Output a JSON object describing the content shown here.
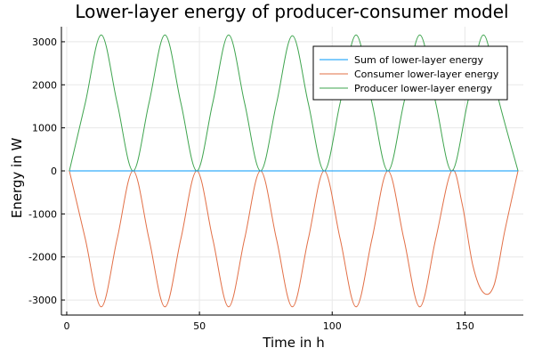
{
  "chart_data": {
    "type": "line",
    "title": "Lower-layer energy of producer-consumer model",
    "xlabel": "Time in h",
    "ylabel": "Energy in W",
    "xlim": [
      -2,
      172
    ],
    "ylim": [
      -3350,
      3350
    ],
    "xticks": [
      0,
      50,
      100,
      150
    ],
    "yticks": [
      -3000,
      -2000,
      -1000,
      0,
      1000,
      2000,
      3000
    ],
    "grid": true,
    "legend": "top-right",
    "series": [
      {
        "name": "Sum of lower-layer energy",
        "color": "#009AFA",
        "x": [
          1,
          170
        ],
        "y": [
          0,
          0
        ]
      },
      {
        "name": "Consumer lower-layer energy",
        "color": "#E26F46",
        "x": [
          1,
          7,
          13,
          19,
          25,
          31,
          37,
          43,
          49,
          55,
          61,
          67,
          73,
          79,
          85,
          91,
          97,
          103,
          109,
          115,
          121,
          127,
          133,
          139,
          145,
          149,
          153,
          157,
          161,
          165,
          170
        ],
        "y": [
          0,
          -1580,
          -3160,
          -1580,
          0,
          -1580,
          -3160,
          -1580,
          0,
          -1580,
          -3160,
          -1580,
          0,
          -1580,
          -3160,
          -1580,
          0,
          -1580,
          -3160,
          -1580,
          0,
          -1580,
          -3160,
          -1580,
          0,
          -780,
          -2200,
          -2830,
          -2650,
          -1400,
          0
        ]
      },
      {
        "name": "Producer lower-layer energy",
        "color": "#3EA44E",
        "x": [
          1,
          7,
          13,
          19,
          25,
          31,
          37,
          43,
          49,
          55,
          61,
          67,
          73,
          79,
          85,
          91,
          97,
          103,
          109,
          115,
          121,
          127,
          133,
          139,
          145,
          151,
          157,
          163,
          170
        ],
        "y": [
          0,
          1580,
          3160,
          1580,
          0,
          1580,
          3160,
          1580,
          0,
          1580,
          3160,
          1580,
          0,
          1560,
          3140,
          1570,
          0,
          1580,
          3160,
          1580,
          0,
          1580,
          3160,
          1580,
          0,
          1580,
          3160,
          1580,
          0
        ]
      }
    ]
  }
}
